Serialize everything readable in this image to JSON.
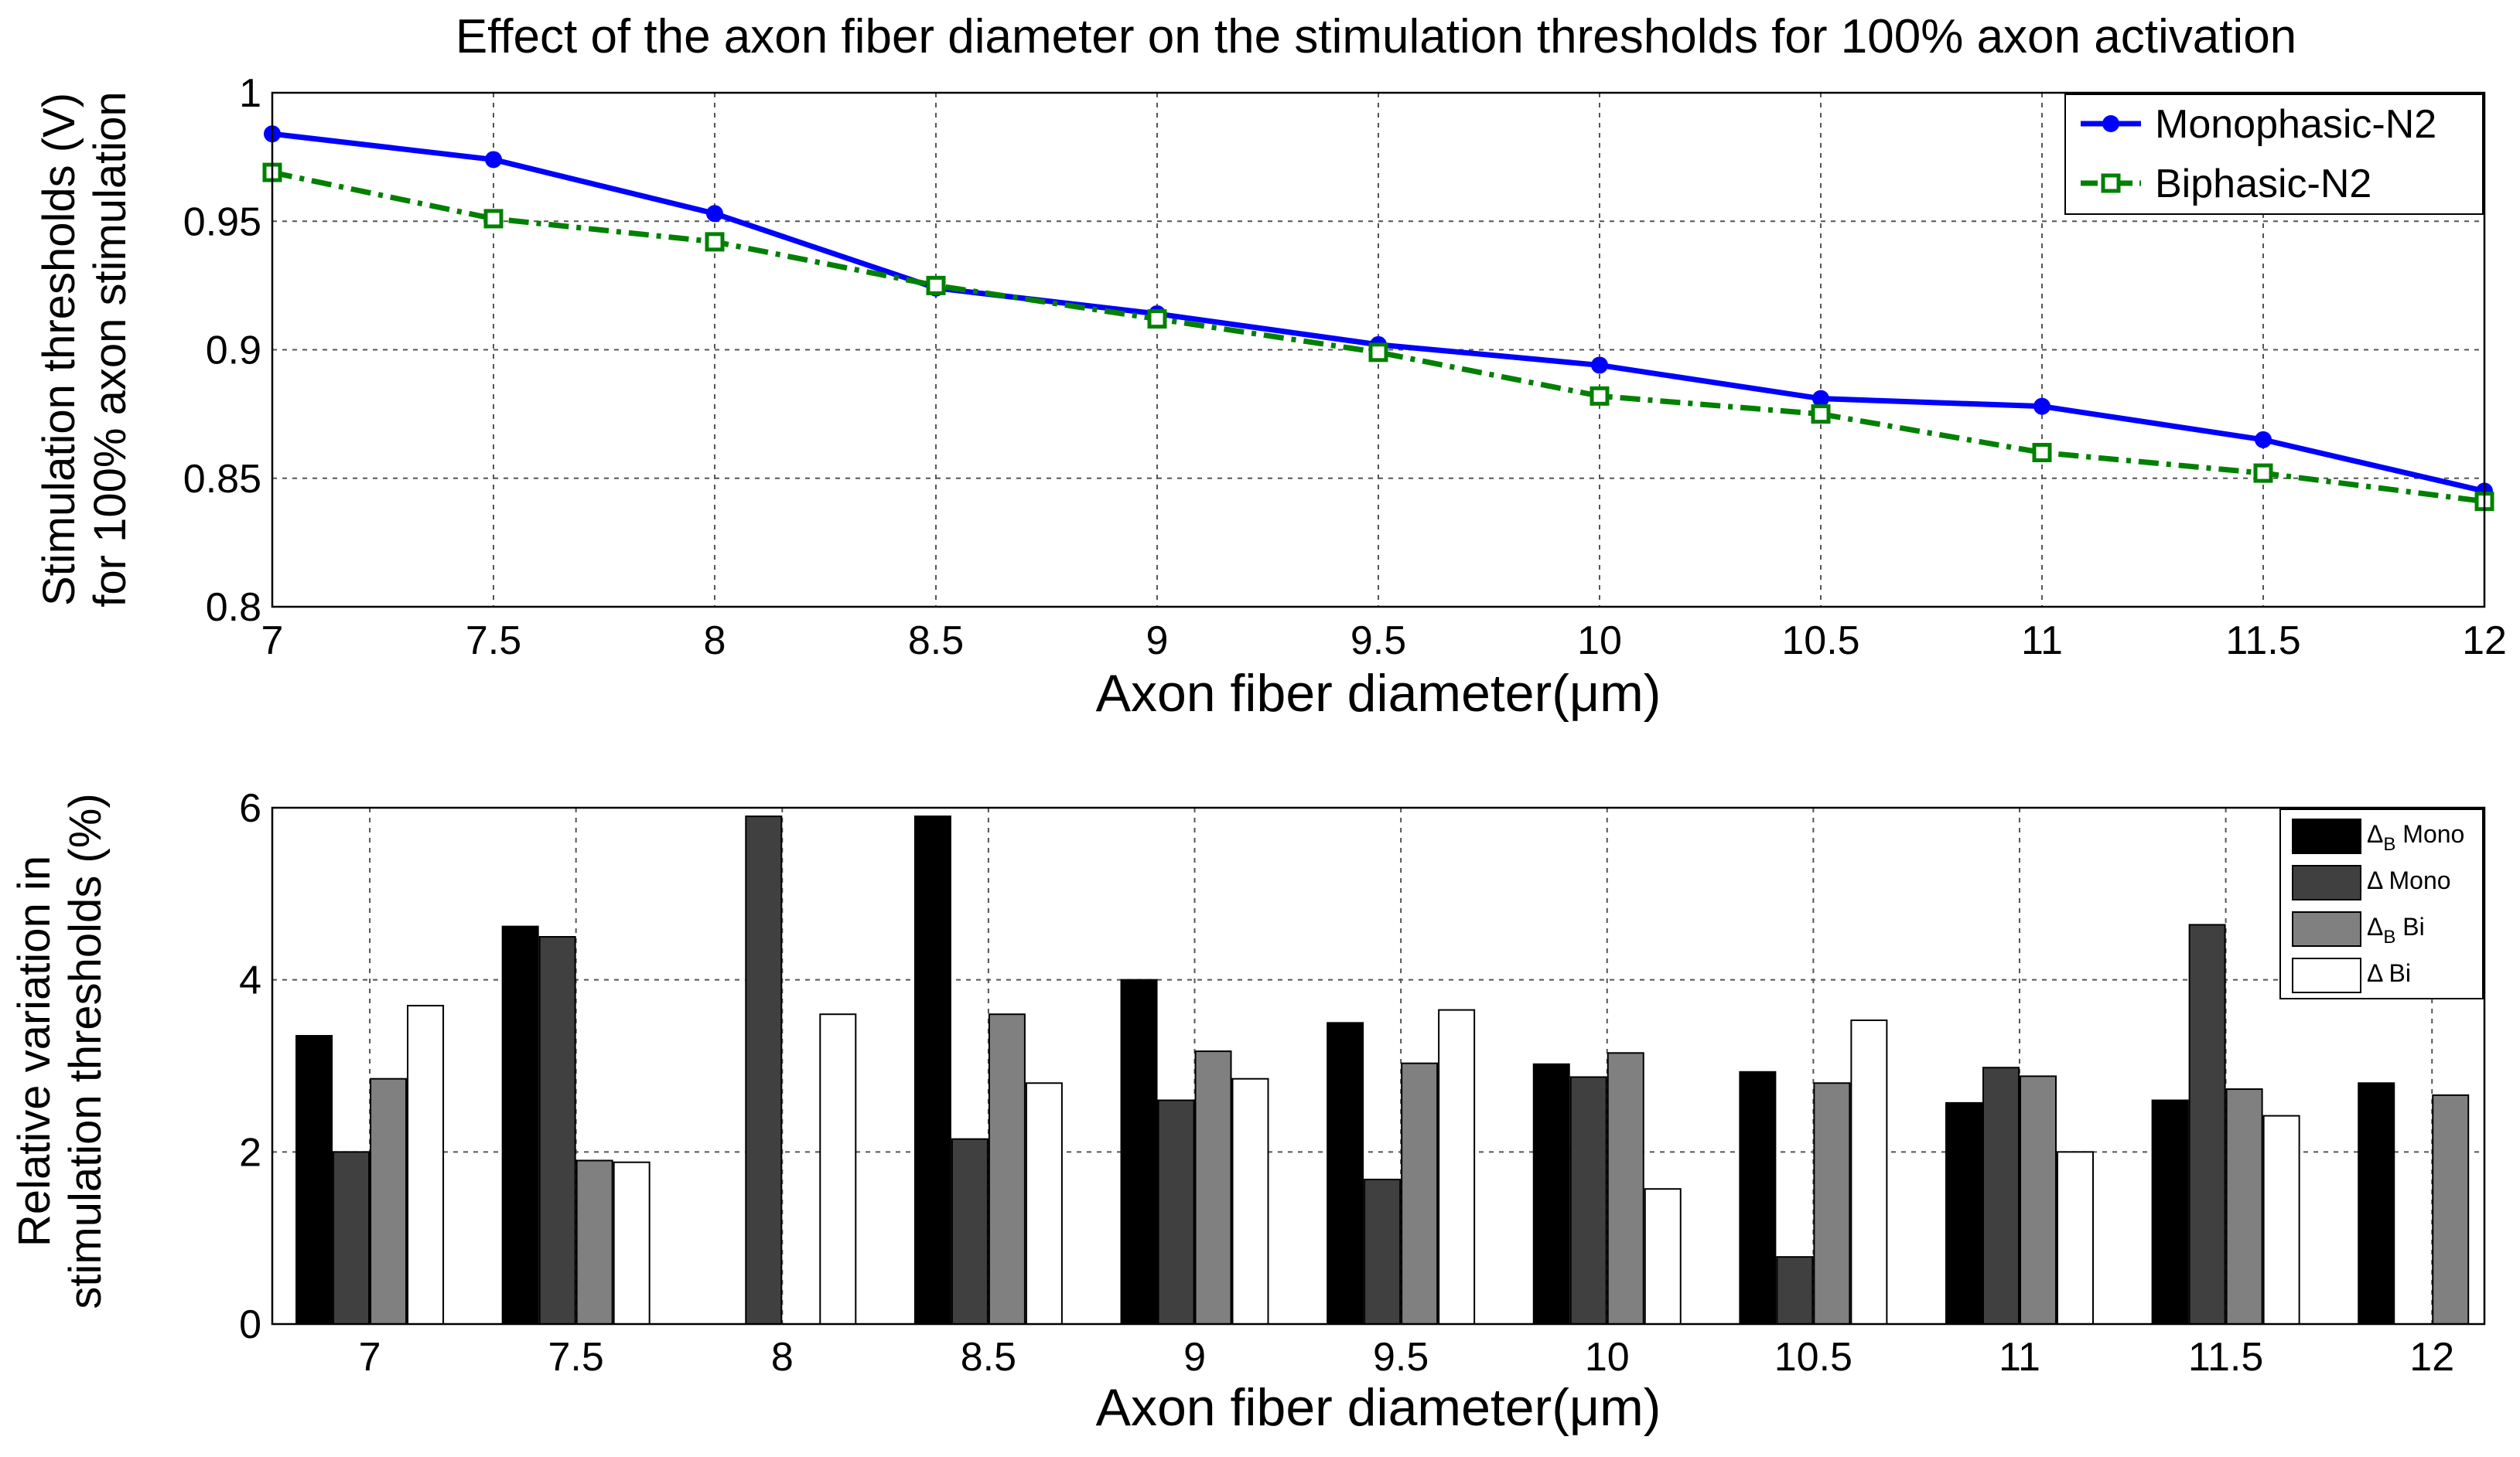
{
  "chart_data": [
    {
      "type": "line",
      "title": "Effect of the axon fiber diameter on the stimulation thresholds for 100% axon activation",
      "xlabel": "Axon fiber diameter(μm)",
      "ylabel_line1": "Stimulation thresholds (V)",
      "ylabel_line2": "for 100% axon stimulation",
      "x": [
        7,
        7.5,
        8,
        8.5,
        9,
        9.5,
        10,
        10.5,
        11,
        11.5,
        12
      ],
      "xticks": [
        "7",
        "7.5",
        "8",
        "8.5",
        "9",
        "9.5",
        "10",
        "10.5",
        "11",
        "11.5",
        "12"
      ],
      "yticks": [
        "0.8",
        "0.85",
        "0.9",
        "0.95",
        "1"
      ],
      "xlim": [
        7,
        12
      ],
      "ylim": [
        0.8,
        1.0
      ],
      "grid": true,
      "legend_position": "top-right",
      "series": [
        {
          "name": "Monophasic-N2",
          "color": "#0000ff",
          "marker": "circle",
          "line_style": "solid",
          "values": [
            0.984,
            0.974,
            0.953,
            0.924,
            0.914,
            0.902,
            0.894,
            0.881,
            0.878,
            0.865,
            0.845
          ]
        },
        {
          "name": "Biphasic-N2",
          "color": "#008000",
          "marker": "square",
          "line_style": "dash-dot",
          "values": [
            0.969,
            0.951,
            0.942,
            0.925,
            0.912,
            0.899,
            0.882,
            0.875,
            0.86,
            0.852,
            0.841
          ]
        }
      ]
    },
    {
      "type": "bar",
      "xlabel": "Axon fiber diameter(μm)",
      "ylabel_line1": "Relative variation in",
      "ylabel_line2": "stimulation thresholds (%)",
      "categories": [
        "7",
        "7.5",
        "8",
        "8.5",
        "9",
        "9.5",
        "10",
        "10.5",
        "11",
        "11.5",
        "12"
      ],
      "yticks": [
        "0",
        "2",
        "4",
        "6"
      ],
      "ylim": [
        0,
        6
      ],
      "grid": true,
      "legend_position": "top-right",
      "series": [
        {
          "name_symbol": "Δ",
          "name_sub": "B",
          "name_text": "Mono",
          "color": "#000000",
          "values": [
            3.35,
            4.62,
            0,
            5.9,
            4.0,
            3.5,
            3.02,
            2.93,
            2.57,
            2.6,
            2.8
          ]
        },
        {
          "name_symbol": "Δ",
          "name_sub": "",
          "name_text": "Mono",
          "color": "#404040",
          "values": [
            2.0,
            4.5,
            5.9,
            2.15,
            2.6,
            1.68,
            2.87,
            0.78,
            2.98,
            4.64,
            0
          ]
        },
        {
          "name_symbol": "Δ",
          "name_sub": "B",
          "name_text": "Bi",
          "color": "#808080",
          "values": [
            2.85,
            1.9,
            0,
            3.6,
            3.17,
            3.03,
            3.15,
            2.8,
            2.88,
            2.73,
            2.66
          ]
        },
        {
          "name_symbol": "Δ",
          "name_sub": "",
          "name_text": "Bi",
          "color": "#ffffff",
          "values": [
            3.7,
            1.88,
            3.6,
            2.8,
            2.85,
            3.65,
            1.57,
            3.53,
            2.0,
            2.42,
            0
          ]
        }
      ]
    }
  ]
}
